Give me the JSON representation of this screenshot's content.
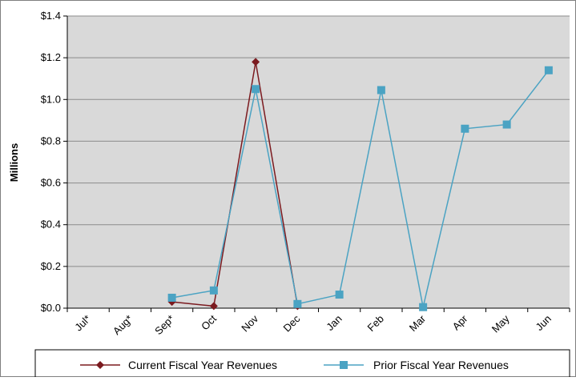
{
  "chart_data": {
    "type": "line",
    "ylabel": "Millions",
    "ylim": [
      0,
      1.4
    ],
    "y_ticks": [
      "$0.0",
      "$0.2",
      "$0.4",
      "$0.6",
      "$0.8",
      "$1.0",
      "$1.2",
      "$1.4"
    ],
    "y_tick_values": [
      0,
      0.2,
      0.4,
      0.6,
      0.8,
      1.0,
      1.2,
      1.4
    ],
    "categories": [
      "Jul*",
      "Aug*",
      "Sep*",
      "Oct",
      "Nov",
      "Dec",
      "Jan",
      "Feb",
      "Mar",
      "Apr",
      "May",
      "Jun"
    ],
    "grid": true,
    "legend_position": "bottom",
    "series": [
      {
        "name": "Current Fiscal Year Revenues",
        "marker": "diamond",
        "color": "#7B1A1F",
        "values": [
          null,
          null,
          0.03,
          0.01,
          1.18,
          0.01,
          null,
          null,
          null,
          null,
          null,
          null
        ]
      },
      {
        "name": "Prior Fiscal Year Revenues",
        "marker": "square",
        "color": "#4BA3C3",
        "values": [
          null,
          null,
          0.05,
          0.085,
          1.05,
          0.02,
          0.065,
          1.045,
          0.005,
          0.86,
          0.88,
          1.14
        ]
      }
    ]
  },
  "colors": {
    "plot_background": "#D9D9D9",
    "grid": "#8C8C8C"
  }
}
